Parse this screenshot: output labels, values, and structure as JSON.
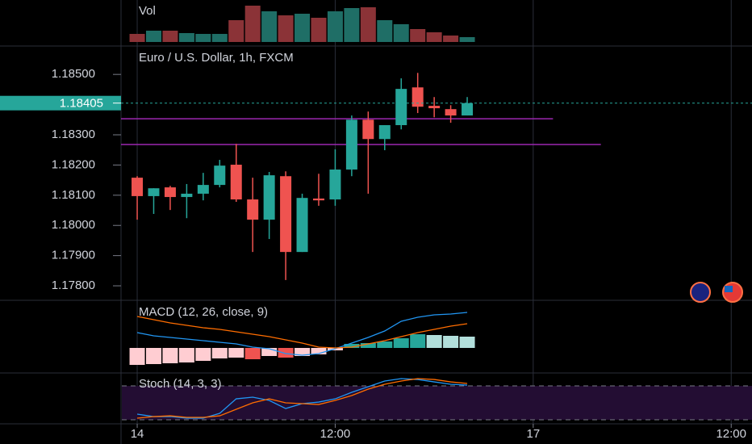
{
  "chart_data": [
    {
      "type": "candlestick",
      "title": "Euro / U.S. Dollar, 1h, FXCM",
      "x": [
        0,
        1,
        2,
        3,
        4,
        5,
        6,
        7,
        8,
        9,
        10,
        11,
        12,
        13,
        14,
        15,
        16,
        17,
        18,
        19,
        20
      ],
      "open": [
        1.18158,
        1.18097,
        1.18126,
        1.18094,
        1.18105,
        1.18134,
        1.18201,
        1.18086,
        1.18019,
        1.18163,
        1.17912,
        1.18089,
        1.18086,
        1.18185,
        1.1835,
        1.18286,
        1.18332,
        1.18457,
        1.18396,
        1.18385,
        1.18364
      ],
      "high": [
        1.18163,
        1.18123,
        1.18131,
        1.18137,
        1.18174,
        1.18217,
        1.1827,
        1.18158,
        1.18177,
        1.18179,
        1.18105,
        1.18171,
        1.18252,
        1.18364,
        1.18377,
        1.18332,
        1.18487,
        1.18505,
        1.18425,
        1.18398,
        1.18425
      ],
      "low": [
        1.18019,
        1.18038,
        1.18051,
        1.18024,
        1.18083,
        1.18126,
        1.18078,
        1.17912,
        1.17955,
        1.17819,
        1.17912,
        1.18065,
        1.18065,
        1.18163,
        1.18105,
        1.18249,
        1.18318,
        1.18372,
        1.18358,
        1.1834,
        1.18364
      ],
      "close": [
        1.18097,
        1.18123,
        1.18094,
        1.18105,
        1.18134,
        1.18198,
        1.18086,
        1.18019,
        1.18166,
        1.17912,
        1.18091,
        1.18083,
        1.18185,
        1.1835,
        1.18286,
        1.18332,
        1.18452,
        1.18393,
        1.18388,
        1.18364,
        1.18405
      ],
      "up_color": "#26a69a",
      "down_color": "#ef5350",
      "ylim": [
        1.17752,
        1.18594
      ],
      "yticks": [
        {
          "value": 1.185,
          "label": "1.18500"
        },
        {
          "value": 1.183,
          "label": "1.18300"
        },
        {
          "value": 1.182,
          "label": "1.18200"
        },
        {
          "value": 1.181,
          "label": "1.18100"
        },
        {
          "value": 1.18,
          "label": "1.18000"
        },
        {
          "value": 1.179,
          "label": "1.17900"
        },
        {
          "value": 1.178,
          "label": "1.17800"
        }
      ],
      "xlim": [
        -0.98,
        37.26
      ],
      "xticks": [
        {
          "value": 0,
          "label": "14"
        },
        {
          "value": 12,
          "label": "12:00"
        },
        {
          "value": 24,
          "label": "17"
        },
        {
          "value": 36,
          "label": "12:00"
        }
      ],
      "last_price": 1.18405,
      "levels": [
        {
          "value": 1.18353,
          "x_end": 25.2,
          "color": "#9c27b0"
        },
        {
          "value": 1.18268,
          "x_end": 28.1,
          "color": "#9c27b0"
        }
      ]
    },
    {
      "type": "volume",
      "title": "Vol",
      "values": [
        10,
        14,
        14,
        11,
        10,
        10,
        27,
        45,
        38,
        33,
        35,
        30,
        38,
        42,
        43,
        27,
        22,
        16,
        12,
        8,
        6
      ],
      "up_color": "#1f6e66",
      "down_color": "#8b3337",
      "ylim": [
        0,
        50
      ]
    },
    {
      "type": "macd",
      "title": "MACD (12, 26, close, 9)",
      "histogram": {
        "values": [
          -2.1,
          -2.0,
          -1.9,
          -1.8,
          -1.6,
          -1.3,
          -1.2,
          -1.4,
          -1.0,
          -1.2,
          -1.0,
          -0.8,
          -0.3,
          0.5,
          0.6,
          0.8,
          1.2,
          1.7,
          1.6,
          1.5,
          1.4
        ],
        "colors": [
          "#ffcdd2",
          "#ffcdd2",
          "#ffcdd2",
          "#ffcdd2",
          "#ffcdd2",
          "#ffcdd2",
          "#ffcdd2",
          "#ef5350",
          "#ffcdd2",
          "#ef5350",
          "#ffcdd2",
          "#ffcdd2",
          "#ffcdd2",
          "#26a69a",
          "#26a69a",
          "#26a69a",
          "#26a69a",
          "#26a69a",
          "#b2dfdb",
          "#b2dfdb",
          "#b2dfdb"
        ]
      },
      "series": [
        {
          "color": "#2196f3",
          "values": [
            1.9,
            1.5,
            1.3,
            1.1,
            0.9,
            0.7,
            0.5,
            0.1,
            -0.1,
            -0.7,
            -0.9,
            -0.7,
            -0.1,
            0.6,
            1.3,
            2.1,
            3.3,
            3.8,
            4.1,
            4.2,
            4.4
          ]
        },
        {
          "color": "#ff6d00",
          "values": [
            3.9,
            3.5,
            3.1,
            2.8,
            2.5,
            2.3,
            2.0,
            1.7,
            1.4,
            1.0,
            0.6,
            0.1,
            0,
            0.1,
            0.5,
            0.9,
            1.4,
            1.9,
            2.3,
            2.7,
            3.0
          ]
        }
      ],
      "ylim": [
        -3.1,
        5.9
      ]
    },
    {
      "type": "stochastic",
      "title": "Stoch (14, 3, 3)",
      "series": [
        {
          "color": "#2196f3",
          "values": [
            30,
            25.7,
            25.7,
            22.9,
            22.9,
            31.4,
            57.1,
            60,
            54.3,
            40,
            48.6,
            51.4,
            57.1,
            68.6,
            78.6,
            88.6,
            92.9,
            91.4,
            87.1,
            82.9,
            81.4
          ]
        },
        {
          "color": "#ff6d00",
          "values": [
            22.9,
            25.7,
            27.1,
            24.3,
            24.3,
            27.1,
            38.6,
            50,
            57.1,
            50,
            48.6,
            47.1,
            54.3,
            62.9,
            74.3,
            82.9,
            88.6,
            92.9,
            91.4,
            87.1,
            84.3
          ]
        }
      ],
      "levels": [
        80,
        20
      ],
      "band_color": "#230d33",
      "ylim": [
        12.9,
        102.9
      ]
    }
  ]
}
